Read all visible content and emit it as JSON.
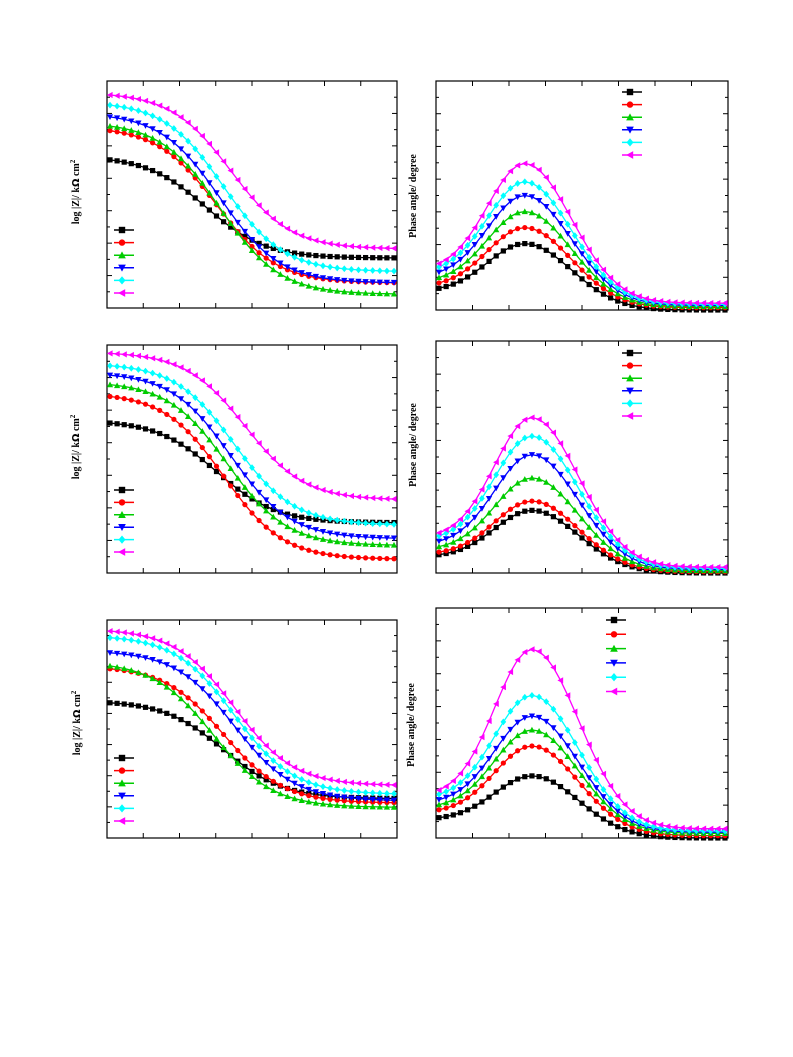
{
  "figure": {
    "panels": [
      {
        "id": "a-bode",
        "ylabel_main": "log |Z|/ k",
        "ylabel_omega": "Ω",
        "ylabel_unit": " cm",
        "ylabel_sup": "2"
      },
      {
        "id": "a-phase",
        "ylabel": "Phase angle/ degree"
      },
      {
        "id": "b-bode",
        "ylabel_main": "log |Z|/ k",
        "ylabel_omega": "Ω",
        "ylabel_unit": " cm",
        "ylabel_sup": "2"
      },
      {
        "id": "b-phase",
        "ylabel": "Phase angle/ degree"
      },
      {
        "id": "c-bode",
        "ylabel_main": "log |Z|/ k",
        "ylabel_omega": "Ω",
        "ylabel_unit": " cm",
        "ylabel_sup": "2"
      },
      {
        "id": "c-phase",
        "ylabel": "Phase angle/ degree"
      }
    ]
  },
  "chart_data": [
    {
      "type": "line",
      "panel": "a-bode",
      "xlabel": "",
      "ylabel": "log |Z|/ kΩ cm2",
      "xlim": [
        0,
        40
      ],
      "ylim": [
        0,
        1
      ],
      "grid": false,
      "legend_position": "bottom-left",
      "series": [
        {
          "color": "#000000",
          "marker": "square",
          "plateau": 0.67,
          "end": 0.22,
          "mid": 13.5
        },
        {
          "color": "#ff0000",
          "marker": "circle",
          "plateau": 0.8,
          "end": 0.11,
          "mid": 15.0
        },
        {
          "color": "#00cc00",
          "marker": "triangle-up",
          "plateau": 0.82,
          "end": 0.06,
          "mid": 15.5
        },
        {
          "color": "#0000ff",
          "marker": "triangle-down",
          "plateau": 0.86,
          "end": 0.11,
          "mid": 15.5
        },
        {
          "color": "#00ffff",
          "marker": "diamond",
          "plateau": 0.91,
          "end": 0.16,
          "mid": 16.0
        },
        {
          "color": "#ff00ff",
          "marker": "triangle-left",
          "plateau": 0.95,
          "end": 0.26,
          "mid": 17.0
        }
      ]
    },
    {
      "type": "line",
      "panel": "a-phase",
      "xlabel": "",
      "ylabel": "Phase angle/ degree",
      "xlim": [
        0,
        40
      ],
      "ylim": [
        0,
        1
      ],
      "grid": false,
      "legend_position": "top-right",
      "series": [
        {
          "color": "#000000",
          "marker": "square",
          "base": 0.08,
          "peak": 0.29,
          "center": 12.0,
          "tail": 0.0
        },
        {
          "color": "#ff0000",
          "marker": "circle",
          "base": 0.1,
          "peak": 0.36,
          "center": 12.0,
          "tail": 0.01
        },
        {
          "color": "#00cc00",
          "marker": "triangle-up",
          "base": 0.12,
          "peak": 0.43,
          "center": 12.0,
          "tail": 0.015
        },
        {
          "color": "#0000ff",
          "marker": "triangle-down",
          "base": 0.14,
          "peak": 0.5,
          "center": 12.0,
          "tail": 0.02
        },
        {
          "color": "#00ffff",
          "marker": "diamond",
          "base": 0.16,
          "peak": 0.56,
          "center": 12.0,
          "tail": 0.025
        },
        {
          "color": "#ff00ff",
          "marker": "triangle-left",
          "base": 0.17,
          "peak": 0.64,
          "center": 12.0,
          "tail": 0.03
        }
      ]
    },
    {
      "type": "line",
      "panel": "b-bode",
      "xlabel": "",
      "ylabel": "log |Z|/ kΩ cm2",
      "xlim": [
        0,
        40
      ],
      "ylim": [
        0,
        1
      ],
      "grid": false,
      "legend_position": "bottom-left",
      "series": [
        {
          "color": "#000000",
          "marker": "square",
          "plateau": 0.67,
          "end": 0.22,
          "mid": 15.0
        },
        {
          "color": "#ff0000",
          "marker": "circle",
          "plateau": 0.79,
          "end": 0.06,
          "mid": 16.0
        },
        {
          "color": "#00cc00",
          "marker": "triangle-up",
          "plateau": 0.84,
          "end": 0.12,
          "mid": 16.5
        },
        {
          "color": "#0000ff",
          "marker": "triangle-down",
          "plateau": 0.88,
          "end": 0.15,
          "mid": 17.0
        },
        {
          "color": "#00ffff",
          "marker": "diamond",
          "plateau": 0.92,
          "end": 0.21,
          "mid": 17.5
        },
        {
          "color": "#ff00ff",
          "marker": "triangle-left",
          "plateau": 0.97,
          "end": 0.32,
          "mid": 19.0
        }
      ]
    },
    {
      "type": "line",
      "panel": "b-phase",
      "xlabel": "",
      "ylabel": "Phase angle/ degree",
      "xlim": [
        0,
        40
      ],
      "ylim": [
        0,
        1
      ],
      "grid": false,
      "legend_position": "top-right",
      "series": [
        {
          "color": "#000000",
          "marker": "square",
          "base": 0.07,
          "peak": 0.27,
          "center": 13.0,
          "tail": 0.0
        },
        {
          "color": "#ff0000",
          "marker": "circle",
          "base": 0.08,
          "peak": 0.31,
          "center": 13.0,
          "tail": 0.005
        },
        {
          "color": "#00cc00",
          "marker": "triangle-up",
          "base": 0.1,
          "peak": 0.41,
          "center": 13.0,
          "tail": 0.01
        },
        {
          "color": "#0000ff",
          "marker": "triangle-down",
          "base": 0.12,
          "peak": 0.51,
          "center": 13.0,
          "tail": 0.015
        },
        {
          "color": "#00ffff",
          "marker": "diamond",
          "base": 0.14,
          "peak": 0.59,
          "center": 13.0,
          "tail": 0.02
        },
        {
          "color": "#ff00ff",
          "marker": "triangle-left",
          "base": 0.15,
          "peak": 0.67,
          "center": 13.0,
          "tail": 0.025
        }
      ]
    },
    {
      "type": "line",
      "panel": "c-bode",
      "xlabel": "",
      "ylabel": "log |Z|/ kΩ cm2",
      "xlim": [
        0,
        40
      ],
      "ylim": [
        0,
        1
      ],
      "grid": false,
      "legend_position": "bottom-left",
      "series": [
        {
          "color": "#000000",
          "marker": "square",
          "plateau": 0.63,
          "end": 0.18,
          "mid": 16.0
        },
        {
          "color": "#ff0000",
          "marker": "circle",
          "plateau": 0.79,
          "end": 0.16,
          "mid": 16.0
        },
        {
          "color": "#00cc00",
          "marker": "triangle-up",
          "plateau": 0.81,
          "end": 0.14,
          "mid": 14.5
        },
        {
          "color": "#0000ff",
          "marker": "triangle-down",
          "plateau": 0.86,
          "end": 0.17,
          "mid": 17.5
        },
        {
          "color": "#00ffff",
          "marker": "diamond",
          "plateau": 0.93,
          "end": 0.2,
          "mid": 17.5
        },
        {
          "color": "#ff00ff",
          "marker": "triangle-left",
          "plateau": 0.96,
          "end": 0.24,
          "mid": 17.5
        }
      ]
    },
    {
      "type": "line",
      "panel": "c-phase",
      "xlabel": "",
      "ylabel": "Phase angle/ degree",
      "xlim": [
        0,
        40
      ],
      "ylim": [
        0,
        1
      ],
      "grid": false,
      "legend_position": "top-right",
      "series": [
        {
          "color": "#000000",
          "marker": "square",
          "base": 0.08,
          "peak": 0.27,
          "center": 13.0,
          "tail": 0.0
        },
        {
          "color": "#ff0000",
          "marker": "circle",
          "base": 0.11,
          "peak": 0.4,
          "center": 13.0,
          "tail": 0.01
        },
        {
          "color": "#00cc00",
          "marker": "triangle-up",
          "base": 0.13,
          "peak": 0.47,
          "center": 13.0,
          "tail": 0.02
        },
        {
          "color": "#0000ff",
          "marker": "triangle-down",
          "base": 0.15,
          "peak": 0.53,
          "center": 13.0,
          "tail": 0.025
        },
        {
          "color": "#00ffff",
          "marker": "diamond",
          "base": 0.17,
          "peak": 0.62,
          "center": 13.0,
          "tail": 0.03
        },
        {
          "color": "#ff00ff",
          "marker": "triangle-left",
          "base": 0.18,
          "peak": 0.82,
          "center": 13.0,
          "tail": 0.04
        }
      ]
    }
  ]
}
